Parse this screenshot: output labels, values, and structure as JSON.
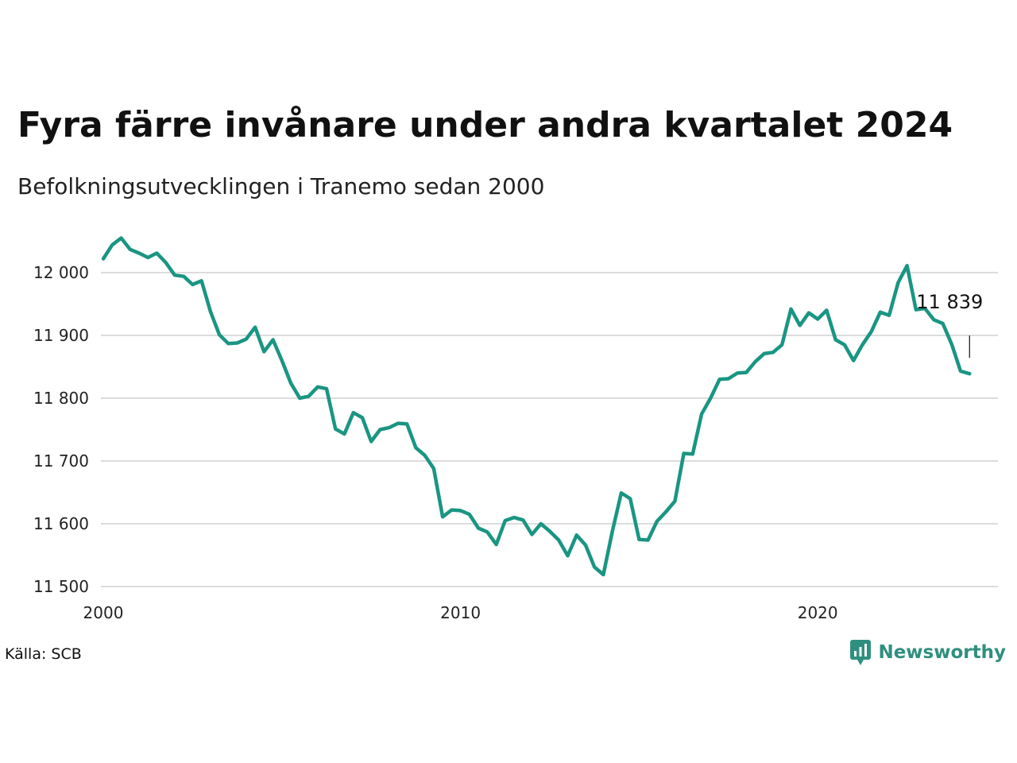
{
  "title": "Fyra färre invånare under andra kvartalet 2024",
  "subtitle": "Befolkningsutvecklingen i Tranemo sedan 2000",
  "source": "Källa: SCB",
  "brand": {
    "name": "Newsworthy",
    "color": "#2f8f7f",
    "icon": "newsworthy-logo-icon"
  },
  "colors": {
    "line": "#1a9583",
    "grid": "#dcdcdc",
    "text": "#111111"
  },
  "chart_data": {
    "type": "line",
    "title": "Fyra färre invånare under andra kvartalet 2024",
    "subtitle": "Befolkningsutvecklingen i Tranemo sedan 2000",
    "xlabel": "",
    "ylabel": "",
    "grid": true,
    "legend": "none",
    "xlim": [
      2000.0,
      2025.0
    ],
    "ylim": [
      11500,
      12000
    ],
    "x_ticks": [
      2000,
      2010,
      2020
    ],
    "y_ticks": [
      11500,
      11600,
      11700,
      11800,
      11900,
      12000
    ],
    "y_tick_labels": [
      "11 500",
      "11 600",
      "11 700",
      "11 800",
      "11 900",
      "12 000"
    ],
    "annotation": {
      "label": "11 839",
      "x": 2024.25,
      "y": 11839
    },
    "series": [
      {
        "x": [
          2000.0,
          2000.25,
          2000.5,
          2000.75,
          2001.0,
          2001.25,
          2001.5,
          2001.75,
          2002.0,
          2002.25,
          2002.5,
          2002.75,
          2003.0,
          2003.25,
          2003.5,
          2003.75,
          2004.0,
          2004.25,
          2004.5,
          2004.75,
          2005.0,
          2005.25,
          2005.5,
          2005.75,
          2006.0,
          2006.25,
          2006.5,
          2006.75,
          2007.0,
          2007.25,
          2007.5,
          2007.75,
          2008.0,
          2008.25,
          2008.5,
          2008.75,
          2009.0,
          2009.25,
          2009.5,
          2009.75,
          2010.0,
          2010.25,
          2010.5,
          2010.75,
          2011.0,
          2011.25,
          2011.5,
          2011.75,
          2012.0,
          2012.25,
          2012.5,
          2012.75,
          2013.0,
          2013.25,
          2013.5,
          2013.75,
          2014.0,
          2014.25,
          2014.5,
          2014.75,
          2015.0,
          2015.25,
          2015.5,
          2015.75,
          2016.0,
          2016.25,
          2016.5,
          2016.75,
          2017.0,
          2017.25,
          2017.5,
          2017.75,
          2018.0,
          2018.25,
          2018.5,
          2018.75,
          2019.0,
          2019.25,
          2019.5,
          2019.75,
          2020.0,
          2020.25,
          2020.5,
          2020.75,
          2021.0,
          2021.25,
          2021.5,
          2021.75,
          2022.0,
          2022.25,
          2022.5,
          2022.75,
          2023.0,
          2023.25,
          2023.5,
          2023.75,
          2024.0,
          2024.25
        ],
        "y": [
          12022,
          12044,
          12055,
          12037,
          12031,
          12024,
          12031,
          12016,
          11996,
          11994,
          11981,
          11987,
          11938,
          11901,
          11887,
          11888,
          11894,
          11913,
          11874,
          11893,
          11860,
          11824,
          11800,
          11803,
          11818,
          11815,
          11751,
          11743,
          11777,
          11769,
          11731,
          11750,
          11753,
          11760,
          11759,
          11721,
          11709,
          11688,
          11611,
          11622,
          11621,
          11615,
          11593,
          11587,
          11567,
          11605,
          11610,
          11606,
          11583,
          11600,
          11588,
          11574,
          11549,
          11582,
          11566,
          11531,
          11519,
          11588,
          11649,
          11640,
          11575,
          11574,
          11604,
          11619,
          11636,
          11712,
          11711,
          11775,
          11800,
          11830,
          11831,
          11840,
          11841,
          11858,
          11871,
          11873,
          11885,
          11942,
          11916,
          11936,
          11926,
          11940,
          11893,
          11885,
          11860,
          11885,
          11906,
          11937,
          11932,
          11984,
          12011,
          11941,
          11943,
          11925,
          11919,
          11886,
          11843,
          11839
        ]
      }
    ]
  }
}
